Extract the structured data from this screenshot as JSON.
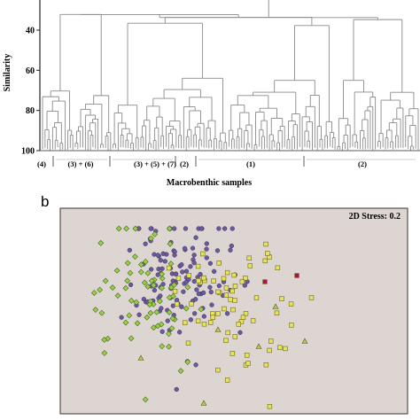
{
  "chart_data": [
    {
      "type": "dendrogram",
      "ylabel": "Similarity",
      "xlabel": "Macrobenthic samples",
      "y_ticks": [
        40,
        60,
        80,
        100
      ],
      "ylim": [
        100,
        25
      ],
      "groups": [
        {
          "label": "(4)"
        },
        {
          "label": "(3) + (6)"
        },
        {
          "label": "(3) + (5) + (7)"
        },
        {
          "label": "(2)"
        },
        {
          "label": "(1)"
        },
        {
          "label": "(2)"
        }
      ],
      "colors": {
        "lines": "#8a8a8a",
        "axis": "#222222"
      }
    },
    {
      "type": "scatter",
      "panel_label": "b",
      "annotation": "2D Stress: 0.2",
      "background": "#ddd5d2",
      "groups": [
        {
          "marker": "circle",
          "color": "#6a5a9a",
          "count": 130
        },
        {
          "marker": "diamond",
          "color": "#9acd4a",
          "count": 70
        },
        {
          "marker": "square",
          "color": "#e6e35a",
          "count": 70
        },
        {
          "marker": "triangle",
          "color": "#b7c35a",
          "count": 6
        },
        {
          "marker": "square",
          "color": "#b01050",
          "count": 2
        }
      ]
    }
  ]
}
